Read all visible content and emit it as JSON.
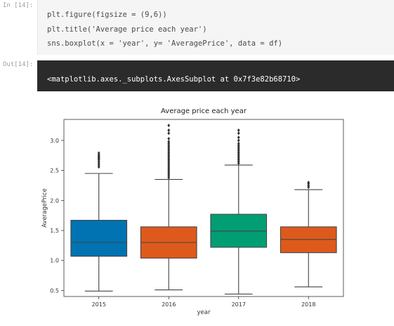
{
  "cell": {
    "in_prompt": "In [14]:",
    "out_prompt": "Out[14]:",
    "code_lines": [
      "plt.figure(figsize = (9,6))",
      "plt.title('Average price each year')",
      "sns.boxplot(x = 'year', y= 'AveragePrice', data = df)"
    ],
    "output_text": "<matplotlib.axes._subplots.AxesSubplot at 0x7f3e82b68710>"
  },
  "colors": {
    "c2015": "#0173b2",
    "c2016": "#de5a1c",
    "c2017": "#029e73",
    "c2018": "#de5a1c",
    "whisker": "#444444"
  },
  "chart_data": {
    "type": "boxplot",
    "title": "Average price each year",
    "xlabel": "year",
    "ylabel": "AveragePrice",
    "ylim": [
      0.4,
      3.35
    ],
    "yticks": [
      0.5,
      1.0,
      1.5,
      2.0,
      2.5,
      3.0
    ],
    "ytick_labels": [
      "0.5",
      "1.0",
      "1.5",
      "2.0",
      "2.5",
      "3.0"
    ],
    "categories": [
      "2015",
      "2016",
      "2017",
      "2018"
    ],
    "boxes": [
      {
        "year": "2015",
        "whislo": 0.49,
        "q1": 1.07,
        "med": 1.3,
        "q3": 1.67,
        "whishi": 2.45,
        "fliers": [
          2.56,
          2.59,
          2.62,
          2.65,
          2.68,
          2.7,
          2.72,
          2.74,
          2.76,
          2.79
        ]
      },
      {
        "year": "2016",
        "whislo": 0.51,
        "q1": 1.04,
        "med": 1.3,
        "q3": 1.56,
        "whishi": 2.35,
        "fliers": [
          2.38,
          2.41,
          2.44,
          2.47,
          2.5,
          2.53,
          2.56,
          2.59,
          2.62,
          2.65,
          2.68,
          2.71,
          2.74,
          2.77,
          2.8,
          2.83,
          2.86,
          2.89,
          2.92,
          2.95,
          2.98,
          3.03,
          3.12,
          3.17,
          3.25
        ]
      },
      {
        "year": "2017",
        "whislo": 0.44,
        "q1": 1.22,
        "med": 1.49,
        "q3": 1.77,
        "whishi": 2.59,
        "fliers": [
          2.62,
          2.65,
          2.68,
          2.71,
          2.74,
          2.77,
          2.8,
          2.83,
          2.86,
          2.89,
          2.92,
          2.95,
          3.0,
          3.05,
          3.12,
          3.17
        ]
      },
      {
        "year": "2018",
        "whislo": 0.56,
        "q1": 1.13,
        "med": 1.35,
        "q3": 1.56,
        "whishi": 2.18,
        "fliers": [
          2.22,
          2.25,
          2.28,
          2.3
        ]
      }
    ]
  }
}
